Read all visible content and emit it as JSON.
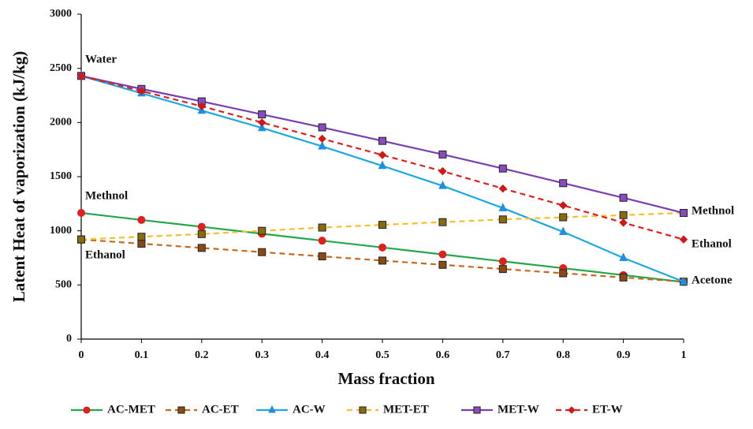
{
  "chart_data": {
    "type": "line",
    "x_label": "Mass fraction",
    "y_label": "Latent Heat of vaporization  (kJ/kg)",
    "x": [
      0,
      0.1,
      0.2,
      0.3,
      0.4,
      0.5,
      0.6,
      0.7,
      0.8,
      0.9,
      1
    ],
    "xlim": [
      0,
      1
    ],
    "xticks": [
      0,
      0.1,
      0.2,
      0.3,
      0.4,
      0.5,
      0.6,
      0.7,
      0.8,
      0.9,
      1
    ],
    "ylim": [
      0,
      3000
    ],
    "yticks": [
      0,
      500,
      1000,
      1500,
      2000,
      2500,
      3000
    ],
    "grid": false,
    "legend": "bottom",
    "series": [
      {
        "name": "AC-MET",
        "color": "#22a84a",
        "marker": "circle",
        "marker_color": "#e0201e",
        "line_style": "solid",
        "values": [
          1165,
          1100,
          1037,
          973,
          909,
          846,
          782,
          718,
          655,
          591,
          527
        ]
      },
      {
        "name": "AC-ET",
        "color": "#c8691e",
        "marker": "square",
        "marker_color": "#8a4a14",
        "line_style": "dashed",
        "values": [
          920,
          881,
          842,
          803,
          764,
          725,
          686,
          647,
          608,
          569,
          530
        ]
      },
      {
        "name": "AC-W",
        "color": "#1fa8e0",
        "marker": "triangle",
        "marker_color": "#1f8fe0",
        "line_style": "solid",
        "values": [
          2430,
          2270,
          2110,
          1950,
          1780,
          1600,
          1415,
          1210,
          990,
          750,
          530
        ]
      },
      {
        "name": "MET-ET",
        "color": "#f5c02a",
        "marker": "square",
        "marker_color": "#8a6a10",
        "line_style": "dashed",
        "values": [
          920,
          945,
          970,
          1000,
          1030,
          1055,
          1080,
          1105,
          1125,
          1145,
          1165
        ]
      },
      {
        "name": "MET-W",
        "color": "#7a3fb0",
        "marker": "square",
        "marker_color": "#8a4ac0",
        "line_style": "solid",
        "values": [
          2430,
          2310,
          2195,
          2075,
          1955,
          1830,
          1705,
          1575,
          1440,
          1305,
          1165
        ]
      },
      {
        "name": "ET-W",
        "color": "#e0201e",
        "marker": "diamond",
        "marker_color": "#d01818",
        "line_style": "dashed",
        "values": [
          2430,
          2290,
          2150,
          2000,
          1850,
          1700,
          1550,
          1390,
          1235,
          1075,
          920
        ]
      }
    ],
    "annotations": [
      "Water",
      "Methnol",
      "Ethanol",
      "Methnol",
      "Ethanol",
      "Acetone"
    ]
  }
}
